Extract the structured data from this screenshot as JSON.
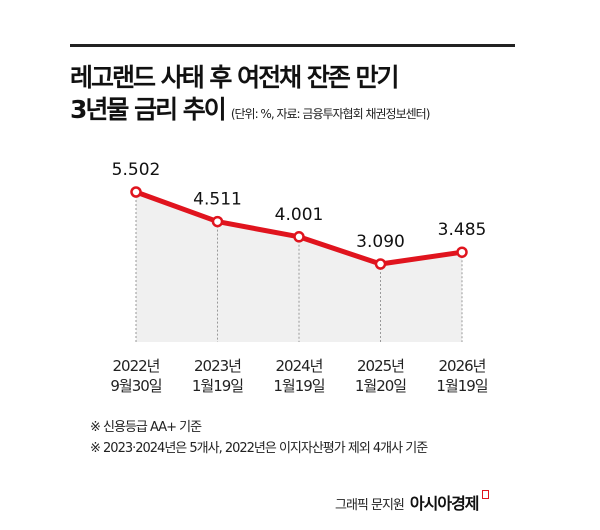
{
  "header": {
    "title_line1": "레고랜드 사태 후 여전채 잔존 만기",
    "title_line2": "3년물 금리 추이",
    "subtitle": "(단위: %, 자료: 금융투자협회 채권정보센터)"
  },
  "chart_data": {
    "type": "area",
    "title": "레고랜드 사태 후 여전채 잔존 만기 3년물 금리 추이",
    "unit": "%",
    "categories": [
      [
        "2022년",
        "9월30일"
      ],
      [
        "2023년",
        "1월19일"
      ],
      [
        "2024년",
        "1월19일"
      ],
      [
        "2025년",
        "1월20일"
      ],
      [
        "2026년",
        "1월19일"
      ]
    ],
    "values": [
      5.502,
      4.511,
      4.001,
      3.09,
      3.485
    ],
    "data_labels": [
      "5.502",
      "4.511",
      "4.001",
      "3.090",
      "3.485"
    ],
    "line_color": "#e0141e",
    "fill_color": "#f0f0f0",
    "grid": "vertical dashed"
  },
  "notes": [
    "※ 신용등급 AA+ 기준",
    "※ 2023·2024년은 5개사, 2022년은 이지자산평가 제외 4개사 기준"
  ],
  "credit": {
    "text": "그래픽 문지원",
    "brand": "아시아경제"
  }
}
